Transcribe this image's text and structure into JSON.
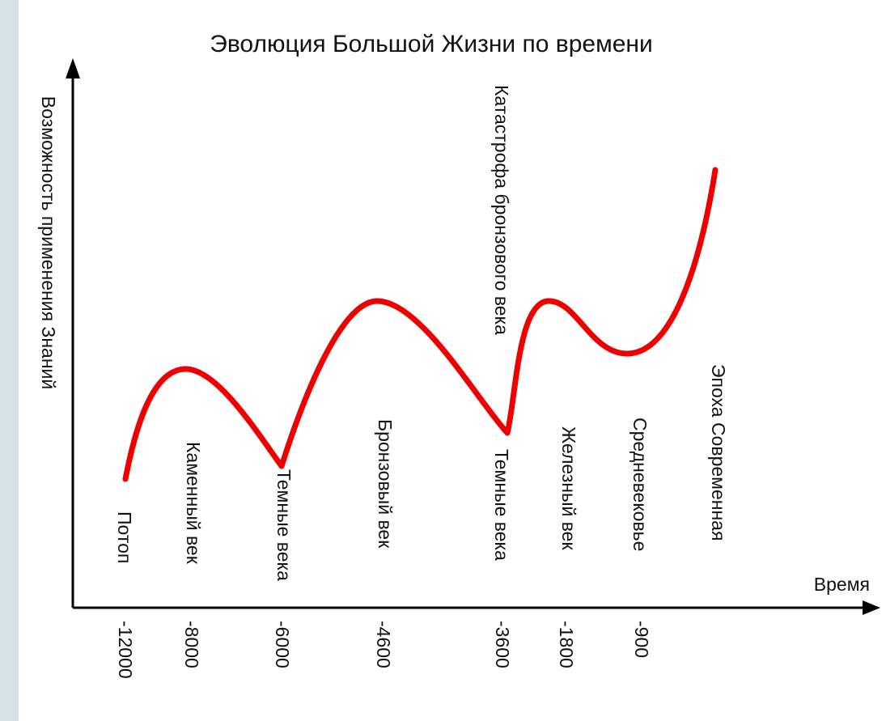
{
  "chart_data": {
    "type": "line",
    "title": "Эволюция Большой Жизни по времени",
    "xlabel": "Время",
    "ylabel": "Возможность применения Знаний",
    "x_ticks": [
      "-12000",
      "-8000",
      "-6000",
      "-4600",
      "-3600",
      "-1800",
      "-900"
    ],
    "eras": [
      "Потоп",
      "Каменный век",
      "Темные века",
      "Бронзовый век",
      "Темные века",
      "Катастрофа бронзового века",
      "Железный век",
      "Средневековье",
      "Эпоха Современная"
    ],
    "y_axis_values_shown": false,
    "series_color": "#ee0000",
    "axis_color": "#000000"
  }
}
